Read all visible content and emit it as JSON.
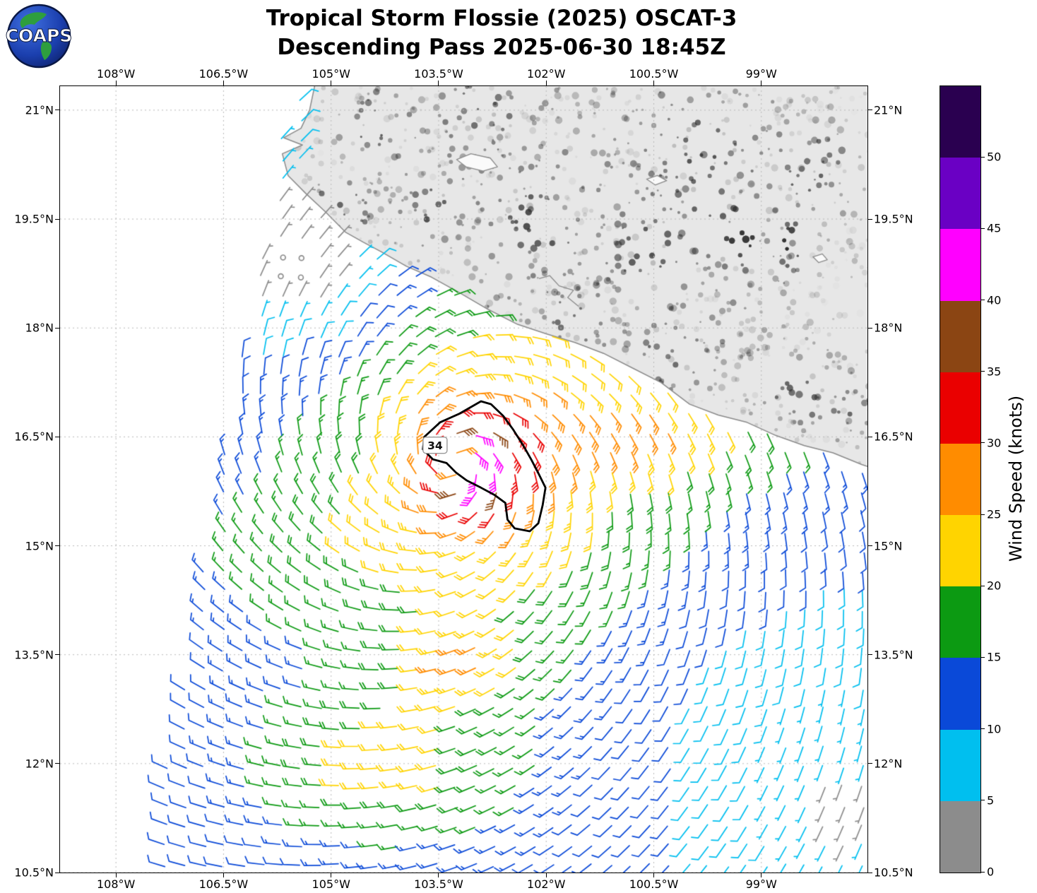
{
  "logo": {
    "text": "COAPS"
  },
  "title": {
    "line1": "Tropical Storm Flossie (2025) OSCAT-3",
    "line2": "Descending Pass 2025-06-30 18:45Z"
  },
  "chart_data": {
    "type": "wind_barb_map",
    "instrument": "OSCAT-3",
    "pass": "Descending",
    "datetime_utc": "2025-06-30 18:45Z",
    "projection": {
      "lon_min": -108.78,
      "lon_max": -97.52,
      "lat_min": 10.5,
      "lat_max": 21.33
    },
    "x_axis": {
      "tick_labels": [
        "108°W",
        "106.5°W",
        "105°W",
        "103.5°W",
        "102°W",
        "100.5°W",
        "99°W"
      ],
      "tick_lons": [
        -108,
        -106.5,
        -105,
        -103.5,
        -102,
        -100.5,
        -99
      ]
    },
    "y_axis": {
      "tick_labels": [
        "10.5°N",
        "12°N",
        "13.5°N",
        "15°N",
        "16.5°N",
        "18°N",
        "19.5°N",
        "21°N"
      ],
      "tick_lats": [
        10.5,
        12,
        13.5,
        15,
        16.5,
        18,
        19.5,
        21
      ]
    },
    "grid": {
      "on": true,
      "style": "dashed"
    },
    "colorbar": {
      "label": "Wind Speed (knots)",
      "tick_values": [
        0,
        5,
        10,
        15,
        20,
        25,
        30,
        35,
        40,
        45,
        50
      ],
      "levels": [
        {
          "min": 0,
          "max": 5,
          "color": "#8c8c8c"
        },
        {
          "min": 5,
          "max": 10,
          "color": "#00bfef"
        },
        {
          "min": 10,
          "max": 15,
          "color": "#0a49d8"
        },
        {
          "min": 15,
          "max": 20,
          "color": "#0c9a12"
        },
        {
          "min": 20,
          "max": 25,
          "color": "#ffd400"
        },
        {
          "min": 25,
          "max": 30,
          "color": "#ff8c00"
        },
        {
          "min": 30,
          "max": 35,
          "color": "#ea0000"
        },
        {
          "min": 35,
          "max": 40,
          "color": "#8b4513"
        },
        {
          "min": 40,
          "max": 45,
          "color": "#ff00ff"
        },
        {
          "min": 45,
          "max": 50,
          "color": "#6a00c4"
        },
        {
          "min": 50,
          "max": 55,
          "color": "#2a0050"
        }
      ]
    },
    "storm": {
      "name": "Flossie",
      "year": "2025",
      "center": {
        "lon": -103.25,
        "lat": 16.12
      },
      "max_observed_wind_knots": 44,
      "contour_label": "34",
      "contour_label_pos": [
        -103.55,
        16.38
      ],
      "contour_34kt": [
        [
          -102.91,
          16.99
        ],
        [
          -103.21,
          16.82
        ],
        [
          -103.48,
          16.7
        ],
        [
          -103.7,
          16.5
        ],
        [
          -103.72,
          16.33
        ],
        [
          -103.58,
          16.19
        ],
        [
          -103.39,
          16.14
        ],
        [
          -103.26,
          16.01
        ],
        [
          -103.11,
          15.9
        ],
        [
          -102.91,
          15.8
        ],
        [
          -102.72,
          15.7
        ],
        [
          -102.57,
          15.59
        ],
        [
          -102.54,
          15.36
        ],
        [
          -102.44,
          15.24
        ],
        [
          -102.23,
          15.2
        ],
        [
          -102.11,
          15.31
        ],
        [
          -102.05,
          15.56
        ],
        [
          -102.01,
          15.8
        ],
        [
          -102.11,
          16.0
        ],
        [
          -102.21,
          16.19
        ],
        [
          -102.32,
          16.38
        ],
        [
          -102.46,
          16.6
        ],
        [
          -102.6,
          16.79
        ],
        [
          -102.77,
          16.95
        ]
      ]
    },
    "wind_model": {
      "center": {
        "lon": -103.25,
        "lat": 16.12
      },
      "vmax_knots": 39,
      "radius_max_wind_deg": 0.42,
      "inner_exponent": 0.3,
      "outer_exponent": 0.45,
      "inflow": 0.35,
      "asymmetry_amp": 0.15,
      "asymmetry_dir_deg": 0,
      "speed_cap": 44,
      "grid_spacing_deg": 0.27,
      "swath_left_lon": -107.55,
      "swath_left_slope": 0.18,
      "enhancements": [
        {
          "lon": -100.5,
          "lat": 16.55,
          "amp": 8,
          "sx": 1.7,
          "sy": 0.6
        },
        {
          "lon": -104.3,
          "lat": 11.9,
          "amp": 9,
          "sx": 1.8,
          "sy": 1.0
        },
        {
          "lon": -103.2,
          "lat": 13.4,
          "amp": 10,
          "sx": 0.8,
          "sy": 0.55
        },
        {
          "lon": -105.5,
          "lat": 14.8,
          "amp": 4,
          "sx": 1.4,
          "sy": 0.9
        }
      ],
      "calm_zones": [
        {
          "lon": -105.5,
          "lat": 18.9,
          "amp": 0.85,
          "r": 1.3
        },
        {
          "lon": -106.6,
          "lat": 20.6,
          "amp": 0.5,
          "r": 1.4
        },
        {
          "lon": -98.4,
          "lat": 12.6,
          "amp": 0.45,
          "r": 2.8
        },
        {
          "lon": -97.85,
          "lat": 11.25,
          "amp": 0.5,
          "r": 0.9
        }
      ],
      "data_gaps": [
        {
          "lon": -104.05,
          "lat": 12.79,
          "r": 0.22
        }
      ]
    },
    "map": {
      "coastline": [
        [
          -105.23,
          21.33
        ],
        [
          -105.3,
          21.0
        ],
        [
          -105.42,
          20.75
        ],
        [
          -105.66,
          20.62
        ],
        [
          -105.4,
          20.52
        ],
        [
          -105.68,
          20.4
        ],
        [
          -105.6,
          20.1
        ],
        [
          -105.35,
          19.85
        ],
        [
          -105.08,
          19.6
        ],
        [
          -104.8,
          19.32
        ],
        [
          -104.55,
          19.18
        ],
        [
          -104.3,
          19.05
        ],
        [
          -103.95,
          18.85
        ],
        [
          -103.6,
          18.7
        ],
        [
          -103.2,
          18.48
        ],
        [
          -102.8,
          18.25
        ],
        [
          -102.4,
          18.05
        ],
        [
          -102.0,
          17.92
        ],
        [
          -101.6,
          17.8
        ],
        [
          -101.2,
          17.65
        ],
        [
          -100.8,
          17.45
        ],
        [
          -100.4,
          17.25
        ],
        [
          -100.0,
          16.95
        ],
        [
          -99.6,
          16.8
        ],
        [
          -99.2,
          16.7
        ],
        [
          -98.8,
          16.52
        ],
        [
          -98.4,
          16.38
        ],
        [
          -98.0,
          16.28
        ],
        [
          -97.6,
          16.12
        ],
        [
          -97.4,
          16.05
        ]
      ],
      "land_test": [
        [
          -105.7,
          20.3
        ],
        [
          -105.3,
          19.85
        ],
        [
          -105.05,
          19.6
        ],
        [
          -104.55,
          19.18
        ],
        [
          -104.0,
          18.9
        ],
        [
          -103.3,
          18.55
        ],
        [
          -102.5,
          18.1
        ],
        [
          -101.6,
          17.8
        ],
        [
          -100.8,
          17.45
        ],
        [
          -100.0,
          16.95
        ],
        [
          -99.2,
          16.7
        ],
        [
          -98.4,
          16.38
        ],
        [
          -97.4,
          16.05
        ]
      ],
      "lakes": [
        [
          [
            -103.25,
            20.32
          ],
          [
            -103.05,
            20.4
          ],
          [
            -102.78,
            20.34
          ],
          [
            -102.68,
            20.22
          ],
          [
            -102.88,
            20.16
          ],
          [
            -103.12,
            20.22
          ]
        ],
        [
          [
            -100.6,
            20.05
          ],
          [
            -100.45,
            20.1
          ],
          [
            -100.32,
            20.03
          ],
          [
            -100.48,
            19.97
          ]
        ],
        [
          [
            -98.28,
            18.98
          ],
          [
            -98.15,
            19.02
          ],
          [
            -98.08,
            18.94
          ],
          [
            -98.2,
            18.9
          ]
        ]
      ],
      "rivers": [
        [
          [
            -101.55,
            18.3
          ],
          [
            -101.7,
            18.42
          ],
          [
            -101.62,
            18.52
          ],
          [
            -101.82,
            18.58
          ],
          [
            -101.95,
            18.72
          ],
          [
            -102.1,
            18.68
          ]
        ]
      ],
      "terrain_blobs": [
        {
          "lon": -98.65,
          "lat": 19.15,
          "a": 0.5,
          "r": 0.25
        },
        {
          "lon": -99.35,
          "lat": 19.3,
          "a": 0.4,
          "r": 0.3
        },
        {
          "lon": -99.0,
          "lat": 19.2,
          "a": 0.32,
          "r": 0.35
        },
        {
          "lon": -100.6,
          "lat": 19.0,
          "a": 0.28,
          "r": 0.35
        },
        {
          "lon": -102.3,
          "lat": 19.5,
          "a": 0.22,
          "r": 0.45
        },
        {
          "lon": -103.6,
          "lat": 19.6,
          "a": 0.24,
          "r": 0.35
        },
        {
          "lon": -104.8,
          "lat": 19.6,
          "a": 0.26,
          "r": 0.4
        },
        {
          "lon": -104.4,
          "lat": 20.8,
          "a": 0.2,
          "r": 0.5
        },
        {
          "lon": -103.0,
          "lat": 21.0,
          "a": 0.16,
          "r": 0.6
        },
        {
          "lon": -99.8,
          "lat": 20.5,
          "a": 0.16,
          "r": 0.6
        },
        {
          "lon": -98.3,
          "lat": 20.2,
          "a": 0.2,
          "r": 0.5
        },
        {
          "lon": -100.2,
          "lat": 17.6,
          "a": 0.2,
          "r": 0.55
        },
        {
          "lon": -101.7,
          "lat": 18.0,
          "a": 0.16,
          "r": 0.5
        },
        {
          "lon": -98.6,
          "lat": 17.2,
          "a": 0.2,
          "r": 0.5
        },
        {
          "lon": -97.9,
          "lat": 16.9,
          "a": 0.22,
          "r": 0.45
        },
        {
          "lon": -102.0,
          "lat": 19.9,
          "a": 0.1,
          "r": 2.2
        },
        {
          "lon": -99.6,
          "lat": 19.7,
          "a": 0.12,
          "r": 1.6
        }
      ]
    }
  }
}
